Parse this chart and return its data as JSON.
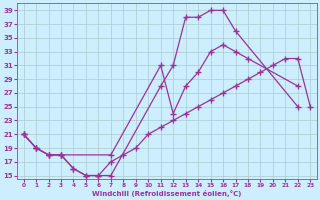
{
  "xlabel": "Windchill (Refroidissement éolien,°C)",
  "bg_color": "#cceeff",
  "line_color": "#993399",
  "grid_color": "#aacccc",
  "xlim": [
    -0.5,
    23.5
  ],
  "ylim": [
    14.5,
    40.0
  ],
  "xticks": [
    0,
    1,
    2,
    3,
    4,
    5,
    6,
    7,
    8,
    9,
    10,
    11,
    12,
    13,
    14,
    15,
    16,
    17,
    18,
    19,
    20,
    21,
    22,
    23
  ],
  "yticks": [
    15,
    17,
    19,
    21,
    23,
    25,
    27,
    29,
    31,
    33,
    35,
    37,
    39
  ],
  "curve1_x": [
    0,
    1,
    2,
    3,
    4,
    5,
    6,
    7,
    11,
    12,
    13,
    14,
    15,
    16,
    17,
    22
  ],
  "curve1_y": [
    21,
    19,
    18,
    18,
    16,
    15,
    15,
    15,
    28,
    31,
    38,
    38,
    39,
    39,
    36,
    25
  ],
  "curve2_x": [
    0,
    1,
    2,
    3,
    7,
    11,
    12,
    13,
    14,
    15,
    16,
    17,
    18,
    22
  ],
  "curve2_y": [
    21,
    19,
    18,
    18,
    18,
    31,
    24,
    28,
    30,
    33,
    34,
    33,
    32,
    28
  ],
  "curve3_x": [
    0,
    1,
    2,
    3,
    4,
    5,
    6,
    7,
    8,
    9,
    10,
    11,
    12,
    13,
    14,
    15,
    16,
    17,
    18,
    19,
    20,
    21,
    22,
    23
  ],
  "curve3_y": [
    21,
    19,
    18,
    18,
    16,
    15,
    15,
    17,
    18,
    19,
    21,
    22,
    23,
    24,
    25,
    26,
    27,
    28,
    29,
    30,
    31,
    32,
    32,
    25
  ]
}
